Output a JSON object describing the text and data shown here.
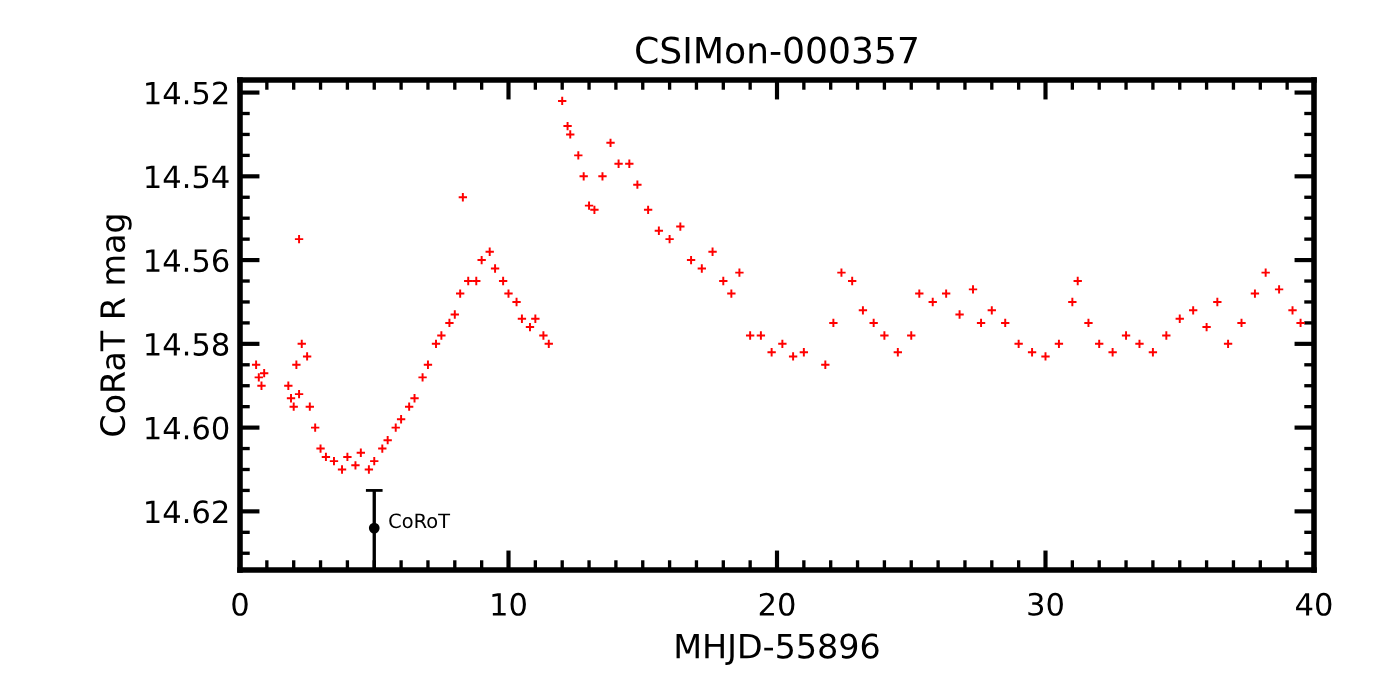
{
  "chart_data": {
    "type": "scatter",
    "title": "CSIMon-000357",
    "xlabel": "MHJD-55896",
    "ylabel": "CoRaT R mag",
    "xlim": [
      0,
      40
    ],
    "xticks": [
      0,
      10,
      20,
      30,
      40
    ],
    "ylim": [
      14.634,
      14.517
    ],
    "yticks": [
      {
        "value": 14.52,
        "label": "14.52"
      },
      {
        "value": 14.54,
        "label": "14.54"
      },
      {
        "value": 14.56,
        "label": "14.56"
      },
      {
        "value": 14.58,
        "label": "14.58"
      },
      {
        "value": 14.6,
        "label": "14.60"
      },
      {
        "value": 14.62,
        "label": "14.62"
      }
    ],
    "marker": "cross",
    "grid": false,
    "legend": false,
    "series": [
      {
        "color": "#ff0000",
        "x": [
          0.6,
          0.7,
          0.8,
          0.9,
          1.8,
          1.9,
          2.0,
          2.1,
          2.2,
          2.2,
          2.3,
          2.5,
          2.6,
          2.8,
          3.0,
          3.2,
          3.5,
          3.8,
          4.0,
          4.3,
          4.5,
          4.8,
          5.0,
          5.3,
          5.5,
          5.8,
          6.0,
          6.3,
          6.5,
          6.8,
          7.0,
          7.3,
          7.5,
          7.8,
          8.0,
          8.2,
          8.3,
          8.5,
          8.8,
          9.0,
          9.3,
          9.5,
          9.8,
          10.0,
          10.3,
          10.5,
          10.8,
          11.0,
          11.3,
          11.5,
          12.0,
          12.2,
          12.3,
          12.6,
          12.8,
          13.0,
          13.2,
          13.5,
          13.8,
          14.1,
          14.5,
          14.8,
          15.2,
          15.6,
          16.0,
          16.4,
          16.8,
          17.2,
          17.6,
          18.0,
          18.3,
          18.6,
          19.0,
          19.4,
          19.8,
          20.2,
          20.6,
          21.0,
          21.8,
          22.1,
          22.4,
          22.8,
          23.2,
          23.6,
          24.0,
          24.5,
          25.0,
          25.3,
          25.8,
          26.3,
          26.8,
          27.3,
          27.6,
          28.0,
          28.5,
          29.0,
          29.5,
          30.0,
          30.5,
          31.0,
          31.2,
          31.6,
          32.0,
          32.5,
          33.0,
          33.5,
          34.0,
          34.5,
          35.0,
          35.5,
          36.0,
          36.4,
          36.8,
          37.3,
          37.8,
          38.2,
          38.7,
          39.2,
          39.5
        ],
        "values": [
          14.585,
          14.588,
          14.59,
          14.587,
          14.59,
          14.593,
          14.595,
          14.585,
          14.555,
          14.592,
          14.58,
          14.583,
          14.595,
          14.6,
          14.605,
          14.607,
          14.608,
          14.61,
          14.607,
          14.609,
          14.606,
          14.61,
          14.608,
          14.605,
          14.603,
          14.6,
          14.598,
          14.595,
          14.593,
          14.588,
          14.585,
          14.58,
          14.578,
          14.575,
          14.573,
          14.568,
          14.545,
          14.565,
          14.565,
          14.56,
          14.558,
          14.562,
          14.565,
          14.568,
          14.57,
          14.574,
          14.576,
          14.574,
          14.578,
          14.58,
          14.522,
          14.528,
          14.53,
          14.535,
          14.54,
          14.547,
          14.548,
          14.54,
          14.532,
          14.537,
          14.537,
          14.542,
          14.548,
          14.553,
          14.555,
          14.552,
          14.56,
          14.562,
          14.558,
          14.565,
          14.568,
          14.563,
          14.578,
          14.578,
          14.582,
          14.58,
          14.583,
          14.582,
          14.585,
          14.575,
          14.563,
          14.565,
          14.572,
          14.575,
          14.578,
          14.582,
          14.578,
          14.568,
          14.57,
          14.568,
          14.573,
          14.567,
          14.575,
          14.572,
          14.575,
          14.58,
          14.582,
          14.583,
          14.58,
          14.57,
          14.565,
          14.575,
          14.58,
          14.582,
          14.578,
          14.58,
          14.582,
          14.578,
          14.574,
          14.572,
          14.576,
          14.57,
          14.58,
          14.575,
          14.568,
          14.563,
          14.567,
          14.572,
          14.575
        ]
      },
      {
        "name": "CoRoT",
        "color": "#000000",
        "marker": "circle",
        "x": [
          5
        ],
        "values": [
          14.624
        ],
        "errors": [
          [
            14.615,
            14.634
          ]
        ]
      }
    ]
  }
}
